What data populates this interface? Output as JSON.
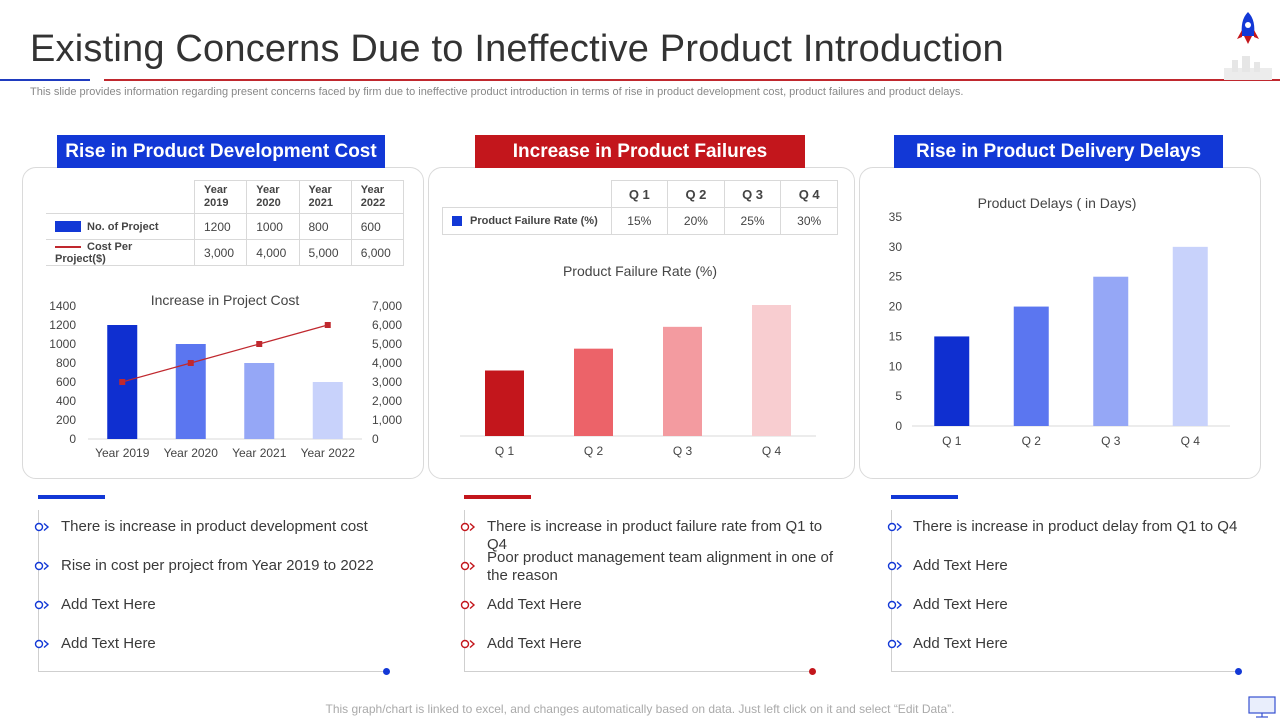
{
  "title": "Existing Concerns Due to Ineffective Product Introduction",
  "subtitle": "This slide provides information regarding present concerns faced by firm due to ineffective product introduction in terms of rise in product development cost, product failures and product delays.",
  "footer": "This graph/chart is linked to excel, and changes automatically based on data. Just left click on it and select “Edit Data”.",
  "colors": {
    "blue": "#1238d6",
    "red": "#c3161c",
    "grey": "#cfcfcf"
  },
  "panels": {
    "left": {
      "header": "Rise in Product Development Cost",
      "table": {
        "columns": [
          "Year 2019",
          "Year 2020",
          "Year 2021",
          "Year 2022"
        ],
        "rows": [
          {
            "label": "No. of Project",
            "values": [
              "1200",
              "1000",
              "800",
              "600"
            ]
          },
          {
            "label": "Cost Per Project($)",
            "values": [
              "3,000",
              "4,000",
              "5,000",
              "6,000"
            ]
          }
        ]
      },
      "bullets": [
        "There is increase in product development cost",
        "Rise in cost per project from Year 2019 to 2022",
        "Add Text Here",
        "Add Text Here"
      ]
    },
    "middle": {
      "header": "Increase in Product Failures",
      "table": {
        "columns": [
          "Q 1",
          "Q 2",
          "Q 3",
          "Q 4"
        ],
        "rows": [
          {
            "label": "Product Failure Rate (%)",
            "values": [
              "15%",
              "20%",
              "25%",
              "30%"
            ]
          }
        ]
      },
      "bullets": [
        "There is increase in product failure rate from Q1 to Q4",
        "Poor product management team alignment in one of the reason",
        "Add Text Here",
        "Add Text Here"
      ]
    },
    "right": {
      "header": "Rise in Product Delivery Delays",
      "bullets": [
        "There is increase in product delay from Q1 to Q4",
        "Add Text Here",
        "Add Text Here",
        "Add Text Here"
      ]
    }
  },
  "chart_data": [
    {
      "type": "bar",
      "title": "Increase in Project Cost",
      "categories": [
        "Year 2019",
        "Year 2020",
        "Year 2021",
        "Year 2022"
      ],
      "series": [
        {
          "name": "No. of Project",
          "type": "bar",
          "values": [
            1200,
            1000,
            800,
            600
          ],
          "colors": [
            "#0f2fd0",
            "#5b76f0",
            "#95a7f6",
            "#c8d2fb"
          ]
        },
        {
          "name": "Cost Per Project($)",
          "type": "line",
          "axis": "secondary",
          "values": [
            3000,
            4000,
            5000,
            6000
          ],
          "color": "#c0282e"
        }
      ],
      "ylim": [
        0,
        1400
      ],
      "yticks": [
        "0",
        "200",
        "400",
        "600",
        "800",
        "1000",
        "1200",
        "1400"
      ],
      "y2lim": [
        0,
        7000
      ],
      "y2ticks": [
        "0",
        "1,000",
        "2,000",
        "3,000",
        "4,000",
        "5,000",
        "6,000",
        "7,000"
      ]
    },
    {
      "type": "bar",
      "title": "Product Failure Rate (%)",
      "categories": [
        "Q 1",
        "Q 2",
        "Q 3",
        "Q 4"
      ],
      "values": [
        15,
        20,
        25,
        30
      ],
      "colors": [
        "#c3161c",
        "#ec6369",
        "#f39ba0",
        "#f8cdd0"
      ],
      "ylim": [
        0,
        30
      ]
    },
    {
      "type": "bar",
      "title": "Product Delays ( in Days)",
      "categories": [
        "Q 1",
        "Q 2",
        "Q 3",
        "Q 4"
      ],
      "values": [
        15,
        20,
        25,
        30
      ],
      "colors": [
        "#0f2fd0",
        "#5b76f0",
        "#95a7f6",
        "#c8d2fb"
      ],
      "ylim": [
        0,
        35
      ],
      "yticks": [
        "0",
        "5",
        "10",
        "15",
        "20",
        "25",
        "30",
        "35"
      ]
    }
  ]
}
